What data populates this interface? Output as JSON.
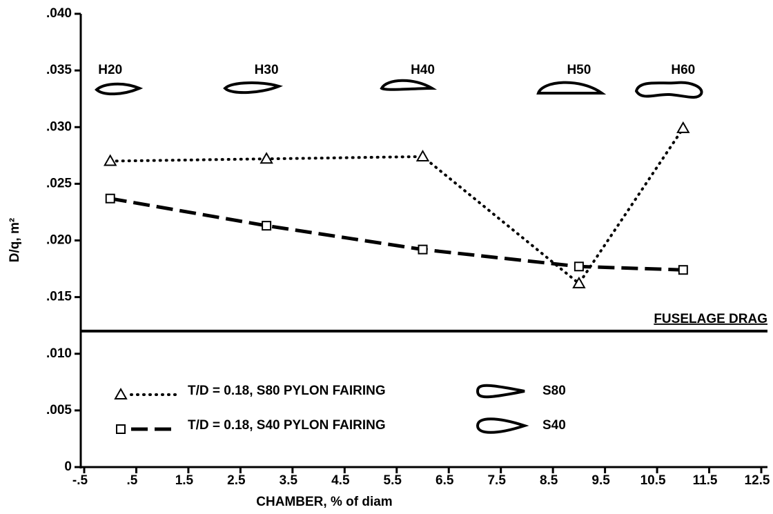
{
  "chart_data": {
    "type": "line",
    "x_label": "CHAMBER, % of diam",
    "y_label": "D/q, m²",
    "x": [
      0,
      3,
      6,
      9,
      11
    ],
    "profile_labels": [
      "H20",
      "H30",
      "H40",
      "H50",
      "H60"
    ],
    "series": [
      {
        "name": "T/D = 0.18, S80 PYLON FAIRING",
        "profile": "S80",
        "color": "#000000",
        "style": "dotted",
        "marker": "triangle",
        "values": [
          0.027,
          0.0272,
          0.0274,
          0.0162,
          0.0299
        ]
      },
      {
        "name": "T/D = 0.18, S40 PYLON FAIRING",
        "profile": "S40",
        "color": "#000000",
        "style": "dashed",
        "marker": "square",
        "values": [
          0.0237,
          0.0213,
          0.0192,
          0.0177,
          0.0174
        ]
      }
    ],
    "reference_lines": [
      {
        "value": 0.012,
        "label": "FUSELAGE DRAG"
      }
    ],
    "xlim": [
      -0.5,
      12.5
    ],
    "ylim": [
      0,
      0.04
    ],
    "xticks": [
      {
        "value": -0.5,
        "label": "-.5"
      },
      {
        "value": 0.5,
        "label": ".5"
      },
      1.5,
      2.5,
      3.5,
      4.5,
      5.5,
      6.5,
      7.5,
      8.5,
      9.5,
      10.5,
      11.5,
      12.5
    ],
    "yticks": [
      0,
      {
        "value": 0.005,
        "label": ".005"
      },
      {
        "value": 0.01,
        "label": ".010"
      },
      {
        "value": 0.015,
        "label": ".015"
      },
      {
        "value": 0.02,
        "label": ".020"
      },
      {
        "value": 0.025,
        "label": ".025"
      },
      {
        "value": 0.03,
        "label": ".030"
      },
      {
        "value": 0.035,
        "label": ".035"
      },
      {
        "value": 0.04,
        "label": ".040"
      }
    ]
  }
}
